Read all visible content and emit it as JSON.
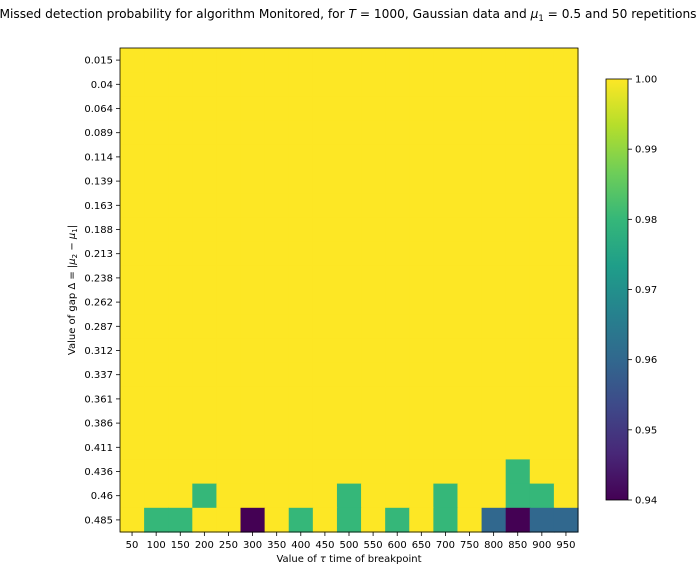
{
  "chart_data": {
    "type": "heatmap",
    "title": "Missed detection probability for algorithm Monitored, for T = 1000, Gaussian data and μ1 = 0.5 and 50 repetitions",
    "title_parts": {
      "pre": "Missed detection probability for algorithm Monitored, for ",
      "T": "T",
      "eq1": " = 1000, Gaussian data and ",
      "mu": "μ",
      "mu_sub": "1",
      "eq2": " = 0.5 and 50 repetitions"
    },
    "xlabel": "Value of τ time of breakpoint",
    "xlabel_parts": {
      "pre": "Value of ",
      "tau": "τ",
      "post": " time of breakpoint"
    },
    "ylabel": "Value of gap Δ = |μ2 − μ1|",
    "ylabel_parts": {
      "pre": "Value of gap Δ = |",
      "mu2": "μ",
      "sub2": "2",
      "minus": " − ",
      "mu1": "μ",
      "sub1": "1",
      "post": "|"
    },
    "x": [
      "50",
      "100",
      "150",
      "200",
      "250",
      "300",
      "350",
      "400",
      "450",
      "500",
      "550",
      "600",
      "650",
      "700",
      "750",
      "800",
      "850",
      "900",
      "950"
    ],
    "y": [
      "0.015",
      "0.04",
      "0.064",
      "0.089",
      "0.114",
      "0.139",
      "0.163",
      "0.188",
      "0.213",
      "0.238",
      "0.262",
      "0.287",
      "0.312",
      "0.337",
      "0.361",
      "0.386",
      "0.411",
      "0.436",
      "0.46",
      "0.485"
    ],
    "values": [
      [
        1,
        1,
        1,
        1,
        1,
        1,
        1,
        1,
        1,
        1,
        1,
        1,
        1,
        1,
        1,
        1,
        1,
        1,
        1
      ],
      [
        1,
        1,
        1,
        1,
        1,
        1,
        1,
        1,
        1,
        1,
        1,
        1,
        1,
        1,
        1,
        1,
        1,
        1,
        1
      ],
      [
        1,
        1,
        1,
        1,
        1,
        1,
        1,
        1,
        1,
        1,
        1,
        1,
        1,
        1,
        1,
        1,
        1,
        1,
        1
      ],
      [
        1,
        1,
        1,
        1,
        1,
        1,
        1,
        1,
        1,
        1,
        1,
        1,
        1,
        1,
        1,
        1,
        1,
        1,
        1
      ],
      [
        1,
        1,
        1,
        1,
        1,
        1,
        1,
        1,
        1,
        1,
        1,
        1,
        1,
        1,
        1,
        1,
        1,
        1,
        1
      ],
      [
        1,
        1,
        1,
        1,
        1,
        1,
        1,
        1,
        1,
        1,
        1,
        1,
        1,
        1,
        1,
        1,
        1,
        1,
        1
      ],
      [
        1,
        1,
        1,
        1,
        1,
        1,
        1,
        1,
        1,
        1,
        1,
        1,
        1,
        1,
        1,
        1,
        1,
        1,
        1
      ],
      [
        1,
        1,
        1,
        1,
        1,
        1,
        1,
        1,
        1,
        1,
        1,
        1,
        1,
        1,
        1,
        1,
        1,
        1,
        1
      ],
      [
        1,
        1,
        1,
        1,
        1,
        1,
        1,
        1,
        1,
        1,
        1,
        1,
        1,
        1,
        1,
        1,
        1,
        1,
        1
      ],
      [
        1,
        1,
        1,
        1,
        1,
        1,
        1,
        1,
        1,
        1,
        1,
        1,
        1,
        1,
        1,
        1,
        1,
        1,
        1
      ],
      [
        1,
        1,
        1,
        1,
        1,
        1,
        1,
        1,
        1,
        1,
        1,
        1,
        1,
        1,
        1,
        1,
        1,
        1,
        1
      ],
      [
        1,
        1,
        1,
        1,
        1,
        1,
        1,
        1,
        1,
        1,
        1,
        1,
        1,
        1,
        1,
        1,
        1,
        1,
        1
      ],
      [
        1,
        1,
        1,
        1,
        1,
        1,
        1,
        1,
        1,
        1,
        1,
        1,
        1,
        1,
        1,
        1,
        1,
        1,
        1
      ],
      [
        1,
        1,
        1,
        1,
        1,
        1,
        1,
        1,
        1,
        1,
        1,
        1,
        1,
        1,
        1,
        1,
        1,
        1,
        1
      ],
      [
        1,
        1,
        1,
        1,
        1,
        1,
        1,
        1,
        1,
        1,
        1,
        1,
        1,
        1,
        1,
        1,
        1,
        1,
        1
      ],
      [
        1,
        1,
        1,
        1,
        1,
        1,
        1,
        1,
        1,
        1,
        1,
        1,
        1,
        1,
        1,
        1,
        1,
        1,
        1
      ],
      [
        1,
        1,
        1,
        1,
        1,
        1,
        1,
        1,
        1,
        1,
        1,
        1,
        1,
        1,
        1,
        1,
        1,
        1,
        1
      ],
      [
        1,
        1,
        1,
        1,
        1,
        1,
        1,
        1,
        1,
        1,
        1,
        1,
        1,
        1,
        1,
        1,
        0.98,
        1,
        1
      ],
      [
        1,
        1,
        1,
        0.98,
        1,
        1,
        1,
        1,
        1,
        0.98,
        1,
        1,
        1,
        0.98,
        1,
        1,
        0.98,
        0.98,
        1
      ],
      [
        1,
        0.98,
        0.98,
        1,
        1,
        0.94,
        1,
        0.98,
        1,
        0.98,
        1,
        0.98,
        1,
        0.98,
        1,
        0.96,
        0.94,
        0.96,
        0.96
      ]
    ],
    "colorbar": {
      "min": 0.94,
      "max": 1.0,
      "ticks": [
        "0.94",
        "0.95",
        "0.96",
        "0.97",
        "0.98",
        "0.99",
        "1.00"
      ]
    },
    "colormap": [
      "#440154",
      "#482878",
      "#3e4989",
      "#31688e",
      "#26828e",
      "#1f9e89",
      "#35b779",
      "#6ece58",
      "#b5de2b",
      "#fde725"
    ],
    "grid": false
  }
}
